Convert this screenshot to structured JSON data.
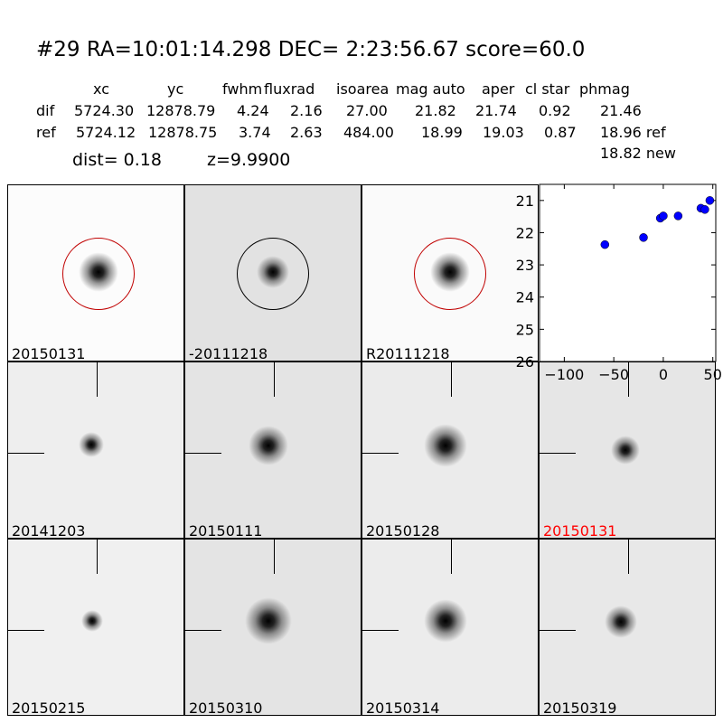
{
  "header": {
    "title": "#29   RA=10:01:14.298 DEC= 2:23:56.67      score=60.0",
    "columns": [
      "xc",
      "yc",
      "fwhm",
      "fluxrad",
      "isoarea",
      "mag auto",
      "aper",
      "cl star",
      "phmag"
    ],
    "dif": {
      "label": "dif",
      "values": [
        "5724.30",
        "12878.79",
        "4.24",
        "2.16",
        "27.00",
        "21.82",
        "21.74",
        "0.92",
        "21.46"
      ]
    },
    "ref": {
      "label": "ref",
      "values": [
        "5724.12",
        "12878.75",
        "3.74",
        "2.63",
        "484.00",
        "18.99",
        "19.03",
        "0.87",
        "18.96 ref"
      ]
    },
    "new_mag": "18.82 new",
    "dist": "dist=  0.18",
    "z": "z=9.9900"
  },
  "stamps": [
    {
      "label": "20150131",
      "circle": "#c00000"
    },
    {
      "label": "-20111218",
      "circle": "#000000"
    },
    {
      "label": "R20111218",
      "circle": "#c00000"
    },
    {
      "label": "20141203"
    },
    {
      "label": "20150111"
    },
    {
      "label": "20150128"
    },
    {
      "label": "20150131",
      "highlight": "#ff0000"
    },
    {
      "label": "20150215"
    },
    {
      "label": "20150310"
    },
    {
      "label": "20150314"
    },
    {
      "label": "20150319"
    }
  ],
  "chart_data": {
    "type": "scatter",
    "x": [
      -59,
      -20,
      -3,
      0,
      15,
      38,
      42,
      47
    ],
    "y": [
      22.37,
      22.15,
      21.55,
      21.48,
      21.48,
      21.24,
      21.28,
      21.0
    ],
    "yerr": [
      0.12,
      0.06,
      0.05,
      0.05,
      0.04,
      0.04,
      0.04,
      0.04
    ],
    "xlim": [
      -125,
      53
    ],
    "ylim": [
      26,
      20.5
    ],
    "y_inverted": true,
    "xticks": [
      "-100",
      "-50",
      "0",
      "50"
    ],
    "yticks": [
      "21",
      "22",
      "23",
      "24",
      "25",
      "26"
    ],
    "marker_color": "#0000ff",
    "grid": false
  }
}
